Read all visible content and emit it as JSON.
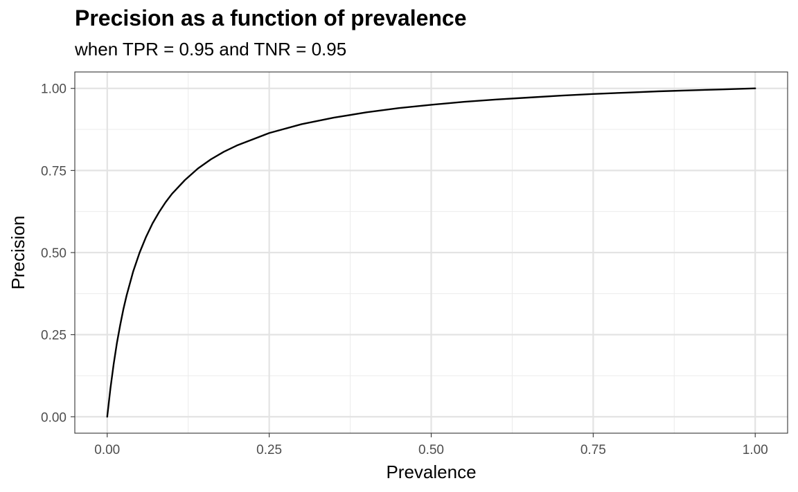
{
  "chart_data": {
    "type": "line",
    "title": "Precision as a function of prevalence",
    "subtitle": "when TPR = 0.95 and TNR = 0.95",
    "xlabel": "Prevalence",
    "ylabel": "Precision",
    "xlim": [
      -0.05,
      1.05
    ],
    "ylim": [
      -0.05,
      1.05
    ],
    "x_ticks": [
      {
        "value": 0,
        "label": "0.00"
      },
      {
        "value": 0.25,
        "label": "0.25"
      },
      {
        "value": 0.5,
        "label": "0.50"
      },
      {
        "value": 0.75,
        "label": "0.75"
      },
      {
        "value": 1,
        "label": "1.00"
      }
    ],
    "y_ticks": [
      {
        "value": 0,
        "label": "0.00"
      },
      {
        "value": 0.25,
        "label": "0.25"
      },
      {
        "value": 0.5,
        "label": "0.50"
      },
      {
        "value": 0.75,
        "label": "0.75"
      },
      {
        "value": 1,
        "label": "1.00"
      }
    ],
    "minor_breaks": [
      0.125,
      0.375,
      0.625,
      0.875
    ],
    "grid": true,
    "line_color": "#000000",
    "series": [
      {
        "x": [
          0,
          0.005,
          0.01,
          0.015,
          0.02,
          0.025,
          0.03,
          0.04,
          0.05,
          0.06,
          0.07,
          0.08,
          0.09,
          0.1,
          0.12,
          0.14,
          0.16,
          0.18,
          0.2,
          0.25,
          0.3,
          0.35,
          0.4,
          0.45,
          0.5,
          0.55,
          0.6,
          0.65,
          0.7,
          0.75,
          0.8,
          0.85,
          0.9,
          0.95,
          1
        ],
        "values": [
          0,
          0.087,
          0.161,
          0.225,
          0.279,
          0.328,
          0.37,
          0.442,
          0.5,
          0.548,
          0.589,
          0.623,
          0.653,
          0.679,
          0.721,
          0.756,
          0.784,
          0.807,
          0.826,
          0.864,
          0.891,
          0.911,
          0.927,
          0.94,
          0.95,
          0.959,
          0.966,
          0.972,
          0.978,
          0.983,
          0.987,
          0.991,
          0.994,
          0.997,
          1
        ]
      }
    ]
  }
}
